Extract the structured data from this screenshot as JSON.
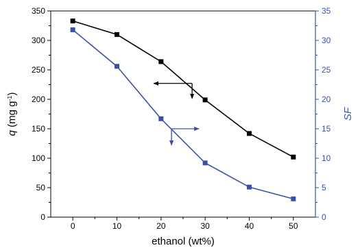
{
  "chart_data": {
    "type": "line",
    "xlabel": "ethanol (wt%)",
    "ylabel_left": {
      "main": "q",
      "unit_pre": " (mg g",
      "unit_sup": "-1",
      "unit_post": ")"
    },
    "ylabel_right": "SF",
    "x": [
      0,
      10,
      20,
      30,
      40,
      50
    ],
    "xlim": [
      -5,
      55
    ],
    "ylim_left": [
      0,
      350
    ],
    "ylim_right": [
      0,
      35
    ],
    "xticks": [
      "0",
      "10",
      "20",
      "30",
      "40",
      "50"
    ],
    "yticks_left": [
      "0",
      "50",
      "100",
      "150",
      "200",
      "250",
      "300",
      "350"
    ],
    "yticks_right": [
      "0",
      "5",
      "10",
      "15",
      "20",
      "25",
      "30",
      "35"
    ],
    "series": [
      {
        "axis": "left",
        "color": "#000000",
        "marker": "square",
        "values": [
          333,
          310,
          264,
          199,
          142,
          102
        ]
      },
      {
        "axis": "right",
        "color": "#3a50a8",
        "marker": "square",
        "values": [
          31.8,
          25.6,
          16.7,
          9.2,
          5.1,
          3.1
        ]
      }
    ],
    "annotations": [
      {
        "type": "axis-indicator-arrows",
        "series": 0,
        "points_to": "left-axis",
        "x": 23,
        "y_left": 227
      },
      {
        "type": "axis-indicator-arrows",
        "series": 1,
        "points_to": "right-axis",
        "x": 23,
        "y_left": 150
      }
    ],
    "right_axis_color": "#3a50a8"
  }
}
